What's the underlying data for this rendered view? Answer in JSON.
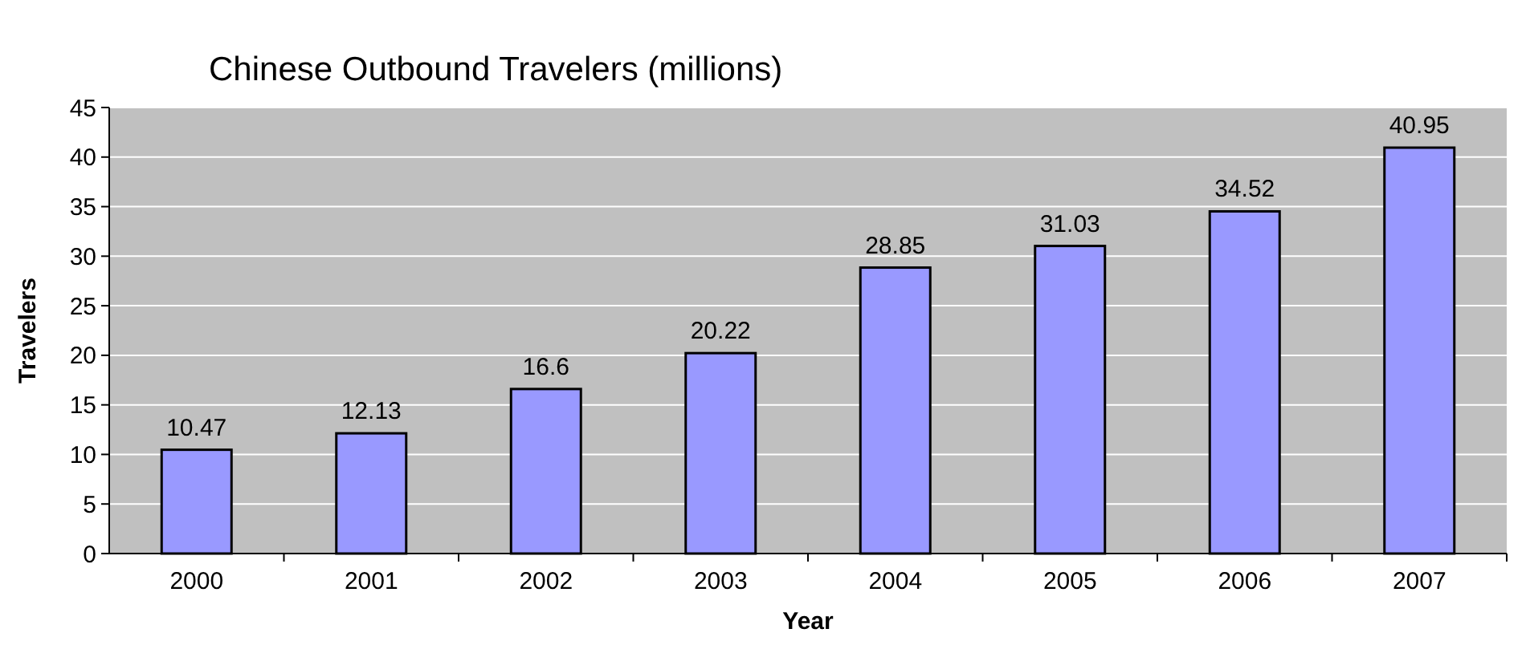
{
  "chart_data": {
    "type": "bar",
    "title": "Chinese Outbound Travelers (millions)",
    "xlabel": "Year",
    "ylabel": "Travelers",
    "categories": [
      "2000",
      "2001",
      "2002",
      "2003",
      "2004",
      "2005",
      "2006",
      "2007"
    ],
    "values": [
      10.47,
      12.13,
      16.6,
      20.22,
      28.85,
      31.03,
      34.52,
      40.95
    ],
    "color": "#9999ff",
    "ylim": [
      0,
      45
    ],
    "yticks": [
      0,
      5,
      10,
      15,
      20,
      25,
      30,
      35,
      40,
      45
    ],
    "grid": "y",
    "data_labels": true
  }
}
